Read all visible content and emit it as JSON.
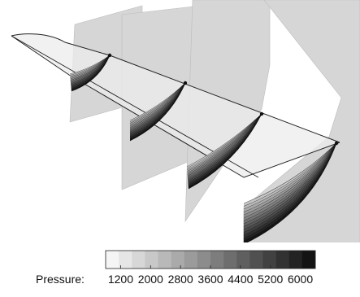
{
  "colorbar": {
    "label": "Pressure:",
    "ticks": [
      "1200",
      "2000",
      "2800",
      "3600",
      "4400",
      "5200",
      "6000"
    ],
    "range": [
      800,
      6400
    ],
    "levels": 16,
    "color_light": "#f5f5f5",
    "color_dark": "#141414"
  },
  "colors": {
    "plane": "#d6d6d6",
    "plane_edge": "#bcbcbc",
    "wing": "#ececec",
    "wing_stroke": "#222222",
    "background": "#ffffff"
  }
}
